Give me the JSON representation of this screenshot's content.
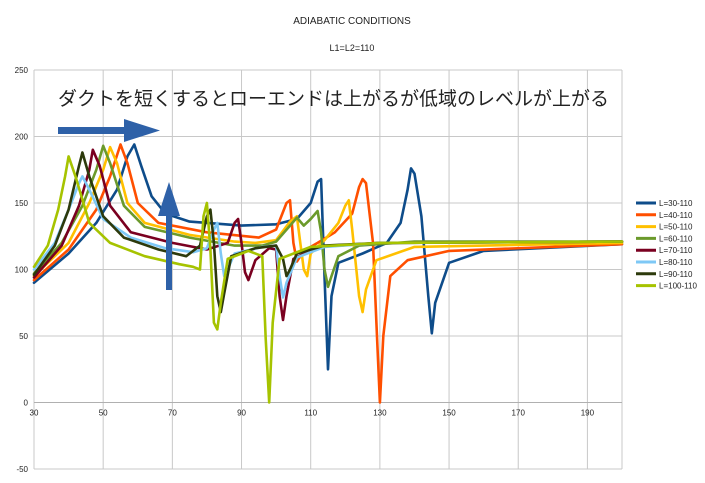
{
  "chart_data": {
    "type": "line",
    "title": "ADIABATIC CONDITIONS",
    "subtitle": "L1=L2=110",
    "annotation": "ダクトを短くするとローエンドは上がるが低域のレベルが上がる",
    "xlabel": "",
    "ylabel": "",
    "xlim": [
      30,
      200
    ],
    "ylim": [
      -50,
      250
    ],
    "x_ticks": [
      30,
      50,
      70,
      90,
      110,
      130,
      150,
      170,
      190
    ],
    "y_ticks": [
      -50,
      0,
      50,
      100,
      150,
      200,
      250
    ],
    "grid": true,
    "legend_position": "right",
    "series": [
      {
        "name": "L=30-110",
        "color": "#0e4c8a",
        "points": [
          [
            30,
            90
          ],
          [
            40,
            112
          ],
          [
            48,
            135
          ],
          [
            54,
            160
          ],
          [
            57,
            185
          ],
          [
            59,
            194
          ],
          [
            61,
            178
          ],
          [
            64,
            155
          ],
          [
            68,
            142
          ],
          [
            75,
            136
          ],
          [
            90,
            133
          ],
          [
            100,
            134
          ],
          [
            106,
            138
          ],
          [
            110,
            150
          ],
          [
            112,
            166
          ],
          [
            113,
            168
          ],
          [
            114,
            95
          ],
          [
            115,
            25
          ],
          [
            116,
            80
          ],
          [
            118,
            105
          ],
          [
            125,
            112
          ],
          [
            132,
            120
          ],
          [
            136,
            135
          ],
          [
            138,
            160
          ],
          [
            139,
            176
          ],
          [
            140,
            172
          ],
          [
            142,
            140
          ],
          [
            144,
            80
          ],
          [
            145,
            52
          ],
          [
            146,
            75
          ],
          [
            150,
            105
          ],
          [
            160,
            114
          ],
          [
            200,
            119
          ]
        ]
      },
      {
        "name": "L=40-110",
        "color": "#ff4f00",
        "points": [
          [
            30,
            92
          ],
          [
            40,
            115
          ],
          [
            48,
            145
          ],
          [
            52,
            170
          ],
          [
            55,
            194
          ],
          [
            57,
            180
          ],
          [
            60,
            150
          ],
          [
            66,
            135
          ],
          [
            80,
            128
          ],
          [
            95,
            124
          ],
          [
            100,
            130
          ],
          [
            103,
            150
          ],
          [
            104,
            152
          ],
          [
            105,
            120
          ],
          [
            106,
            106
          ],
          [
            108,
            114
          ],
          [
            112,
            120
          ],
          [
            117,
            128
          ],
          [
            122,
            142
          ],
          [
            124,
            162
          ],
          [
            125,
            168
          ],
          [
            126,
            165
          ],
          [
            128,
            120
          ],
          [
            129,
            60
          ],
          [
            130,
            0
          ],
          [
            131,
            50
          ],
          [
            133,
            95
          ],
          [
            138,
            107
          ],
          [
            150,
            114
          ],
          [
            200,
            119
          ]
        ]
      },
      {
        "name": "L=50-110",
        "color": "#ffc000",
        "points": [
          [
            30,
            95
          ],
          [
            40,
            120
          ],
          [
            46,
            150
          ],
          [
            50,
            175
          ],
          [
            52,
            192
          ],
          [
            54,
            180
          ],
          [
            57,
            150
          ],
          [
            62,
            135
          ],
          [
            75,
            126
          ],
          [
            88,
            121
          ],
          [
            94,
            120
          ],
          [
            100,
            122
          ],
          [
            104,
            136
          ],
          [
            106,
            140
          ],
          [
            107,
            120
          ],
          [
            108,
            100
          ],
          [
            109,
            95
          ],
          [
            110,
            112
          ],
          [
            114,
            122
          ],
          [
            118,
            135
          ],
          [
            120,
            148
          ],
          [
            121,
            152
          ],
          [
            122,
            130
          ],
          [
            124,
            80
          ],
          [
            125,
            68
          ],
          [
            126,
            85
          ],
          [
            129,
            107
          ],
          [
            140,
            117
          ],
          [
            200,
            120
          ]
        ]
      },
      {
        "name": "L=60-110",
        "color": "#6b9a2b",
        "points": [
          [
            30,
            97
          ],
          [
            38,
            120
          ],
          [
            44,
            148
          ],
          [
            48,
            175
          ],
          [
            50,
            193
          ],
          [
            52,
            180
          ],
          [
            56,
            148
          ],
          [
            62,
            132
          ],
          [
            75,
            124
          ],
          [
            88,
            118
          ],
          [
            96,
            118
          ],
          [
            100,
            121
          ],
          [
            104,
            133
          ],
          [
            106,
            139
          ],
          [
            108,
            133
          ],
          [
            110,
            138
          ],
          [
            112,
            144
          ],
          [
            113,
            128
          ],
          [
            114,
            100
          ],
          [
            115,
            87
          ],
          [
            116,
            95
          ],
          [
            118,
            110
          ],
          [
            124,
            118
          ],
          [
            140,
            121
          ],
          [
            200,
            121
          ]
        ]
      },
      {
        "name": "L=70-110",
        "color": "#7a0020",
        "points": [
          [
            30,
            94
          ],
          [
            38,
            118
          ],
          [
            43,
            148
          ],
          [
            46,
            175
          ],
          [
            47,
            190
          ],
          [
            49,
            178
          ],
          [
            52,
            148
          ],
          [
            58,
            128
          ],
          [
            70,
            120
          ],
          [
            80,
            115
          ],
          [
            86,
            120
          ],
          [
            88,
            135
          ],
          [
            89,
            138
          ],
          [
            90,
            120
          ],
          [
            91,
            98
          ],
          [
            92,
            92
          ],
          [
            94,
            107
          ],
          [
            98,
            116
          ],
          [
            100,
            115
          ],
          [
            101,
            80
          ],
          [
            102,
            62
          ],
          [
            103,
            80
          ],
          [
            105,
            108
          ],
          [
            112,
            117
          ],
          [
            130,
            120
          ],
          [
            200,
            121
          ]
        ]
      },
      {
        "name": "L=80-110",
        "color": "#7ec8f6",
        "points": [
          [
            30,
            100
          ],
          [
            36,
            120
          ],
          [
            40,
            145
          ],
          [
            43,
            165
          ],
          [
            44,
            170
          ],
          [
            46,
            160
          ],
          [
            50,
            138
          ],
          [
            58,
            124
          ],
          [
            68,
            116
          ],
          [
            76,
            113
          ],
          [
            80,
            116
          ],
          [
            82,
            130
          ],
          [
            83,
            135
          ],
          [
            84,
            112
          ],
          [
            85,
            95
          ],
          [
            86,
            100
          ],
          [
            88,
            112
          ],
          [
            96,
            117
          ],
          [
            100,
            118
          ],
          [
            101,
            95
          ],
          [
            102,
            79
          ],
          [
            103,
            90
          ],
          [
            106,
            109
          ],
          [
            114,
            117
          ],
          [
            130,
            120
          ],
          [
            200,
            121
          ]
        ]
      },
      {
        "name": "L=90-110",
        "color": "#2d3a0c",
        "points": [
          [
            30,
            96
          ],
          [
            36,
            118
          ],
          [
            40,
            145
          ],
          [
            43,
            178
          ],
          [
            44,
            188
          ],
          [
            46,
            170
          ],
          [
            50,
            140
          ],
          [
            56,
            124
          ],
          [
            66,
            115
          ],
          [
            74,
            110
          ],
          [
            78,
            118
          ],
          [
            80,
            140
          ],
          [
            81,
            145
          ],
          [
            82,
            120
          ],
          [
            83,
            80
          ],
          [
            84,
            68
          ],
          [
            85,
            82
          ],
          [
            87,
            110
          ],
          [
            94,
            116
          ],
          [
            100,
            118
          ],
          [
            102,
            108
          ],
          [
            103,
            95
          ],
          [
            104,
            100
          ],
          [
            106,
            112
          ],
          [
            114,
            118
          ],
          [
            130,
            120
          ],
          [
            200,
            121
          ]
        ]
      },
      {
        "name": "L=100-110",
        "color": "#a6c300",
        "points": [
          [
            30,
            102
          ],
          [
            34,
            118
          ],
          [
            37,
            145
          ],
          [
            39,
            170
          ],
          [
            40,
            185
          ],
          [
            42,
            170
          ],
          [
            46,
            135
          ],
          [
            52,
            120
          ],
          [
            62,
            110
          ],
          [
            72,
            104
          ],
          [
            76,
            102
          ],
          [
            78,
            100
          ],
          [
            79,
            140
          ],
          [
            80,
            150
          ],
          [
            81,
            115
          ],
          [
            82,
            60
          ],
          [
            83,
            55
          ],
          [
            84,
            75
          ],
          [
            86,
            108
          ],
          [
            92,
            114
          ],
          [
            96,
            110
          ],
          [
            97,
            48
          ],
          [
            98,
            0
          ],
          [
            99,
            60
          ],
          [
            101,
            108
          ],
          [
            110,
            117
          ],
          [
            130,
            120
          ],
          [
            200,
            121
          ]
        ]
      }
    ]
  }
}
